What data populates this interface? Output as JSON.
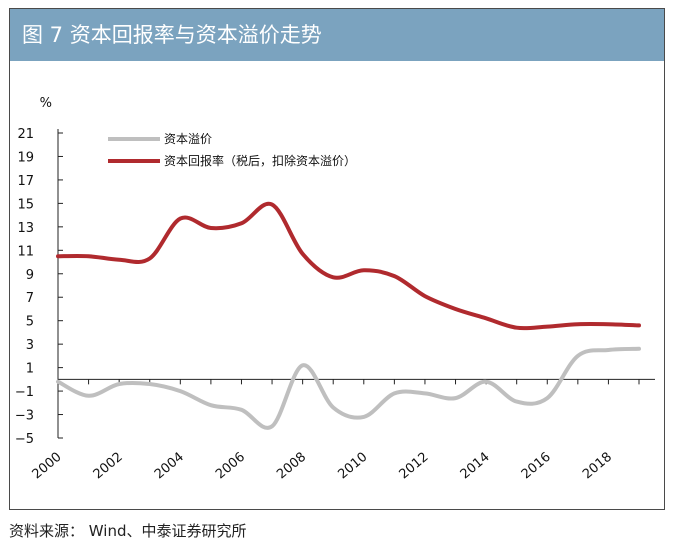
{
  "title": "图 7 资本回报率与资本溢价走势",
  "source": "资料来源： Wind、中泰证券研究所",
  "chart_data": {
    "type": "line",
    "ylabel": "%",
    "ylim": [
      -5,
      21
    ],
    "yticks": [
      21,
      19,
      17,
      15,
      13,
      11,
      9,
      7,
      5,
      3,
      1,
      -1,
      -3,
      -5
    ],
    "xlim": [
      2000,
      2019
    ],
    "xticks": [
      2000,
      2002,
      2004,
      2006,
      2008,
      2010,
      2012,
      2014,
      2016,
      2018
    ],
    "series": [
      {
        "name": "资本溢价",
        "color": "#bfbfbf",
        "points": [
          [
            2000,
            -0.2
          ],
          [
            2001,
            -1.4
          ],
          [
            2002,
            -0.4
          ],
          [
            2003,
            -0.4
          ],
          [
            2004,
            -1.0
          ],
          [
            2005,
            -2.2
          ],
          [
            2006,
            -2.6
          ],
          [
            2007,
            -4.0
          ],
          [
            2008,
            1.2
          ],
          [
            2009,
            -2.4
          ],
          [
            2010,
            -3.2
          ],
          [
            2011,
            -1.2
          ],
          [
            2012,
            -1.2
          ],
          [
            2013,
            -1.6
          ],
          [
            2014,
            -0.2
          ],
          [
            2015,
            -1.9
          ],
          [
            2016,
            -1.6
          ],
          [
            2017,
            2.0
          ],
          [
            2018,
            2.5
          ],
          [
            2019,
            2.6
          ]
        ]
      },
      {
        "name": "资本回报率（税后，扣除资本溢价）",
        "color": "#b02a2e",
        "points": [
          [
            2000,
            10.5
          ],
          [
            2001,
            10.5
          ],
          [
            2002,
            10.2
          ],
          [
            2003,
            10.3
          ],
          [
            2004,
            13.7
          ],
          [
            2005,
            12.9
          ],
          [
            2006,
            13.3
          ],
          [
            2007,
            14.9
          ],
          [
            2008,
            10.7
          ],
          [
            2009,
            8.7
          ],
          [
            2010,
            9.3
          ],
          [
            2011,
            8.8
          ],
          [
            2012,
            7.1
          ],
          [
            2013,
            6.0
          ],
          [
            2014,
            5.2
          ],
          [
            2015,
            4.4
          ],
          [
            2016,
            4.5
          ],
          [
            2017,
            4.7
          ],
          [
            2018,
            4.7
          ],
          [
            2019,
            4.6
          ]
        ]
      }
    ]
  }
}
